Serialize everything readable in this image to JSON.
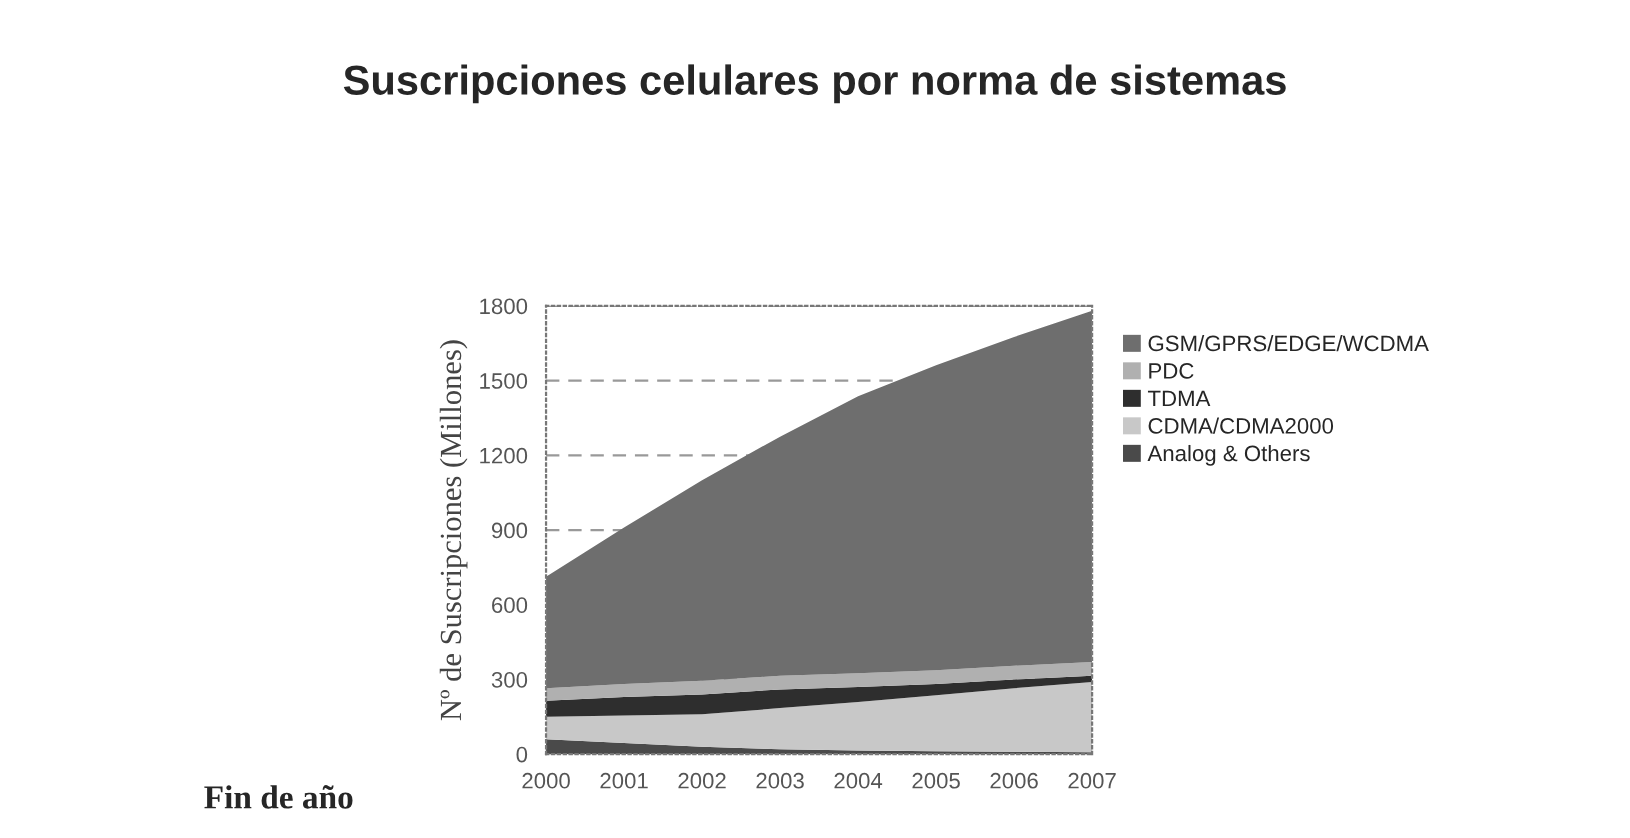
{
  "chart_data": {
    "type": "area",
    "stacked": true,
    "title": "Suscripciones celulares por norma de sistemas",
    "ylabel": "Nº de Suscripciones (Millones)",
    "categories": [
      "2000",
      "2001",
      "2002",
      "2003",
      "2004",
      "2005",
      "2006",
      "2007"
    ],
    "series": [
      {
        "name": "Analog & Others",
        "color": "#4a4a4a",
        "values": [
          60,
          45,
          30,
          20,
          15,
          12,
          10,
          8
        ]
      },
      {
        "name": "CDMA/CDMA2000",
        "color": "#c8c8c8",
        "values": [
          90,
          110,
          130,
          165,
          195,
          225,
          255,
          282
        ]
      },
      {
        "name": "TDMA",
        "color": "#2e2e2e",
        "values": [
          65,
          75,
          80,
          75,
          60,
          45,
          35,
          25
        ]
      },
      {
        "name": "PDC",
        "color": "#b0b0b0",
        "values": [
          50,
          52,
          55,
          55,
          55,
          55,
          55,
          55
        ]
      },
      {
        "name": "GSM/GPRS/EDGE/WCDMA",
        "color": "#6e6e6e",
        "values": [
          447,
          628,
          805,
          960,
          1112,
          1225,
          1320,
          1410
        ]
      }
    ],
    "ylim": [
      0,
      1800
    ],
    "yticks": [
      0,
      300,
      600,
      900,
      1200,
      1500,
      1800
    ],
    "grid": "y",
    "legend": "right",
    "annotations": [
      "Fin de año"
    ]
  }
}
